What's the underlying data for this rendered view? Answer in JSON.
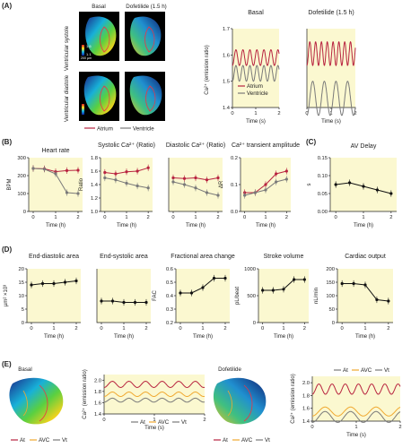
{
  "colors": {
    "atrium": "#b8233f",
    "ventricle": "#7a7a7a",
    "avc": "#f0a830",
    "panel_bg": "#fbf8d0"
  },
  "panelA": {
    "label": "(A)",
    "col_basal": "Basal",
    "col_dof": "Dofetilide (1.5 h)",
    "row_systole": "Ventricular systole",
    "row_diastole": "Ventricular diastole",
    "legend": [
      "Atrium",
      "Ventricle"
    ],
    "scale_vals": [
      "1.6",
      "1.1"
    ],
    "scale_um": "200 µm",
    "chart_titles": [
      "Basal",
      "Dofetilide (1.5 h)"
    ],
    "ylabel": "Ca²⁺ (emission ratio)",
    "xlabel": "Time (s)",
    "ylim": [
      1.4,
      1.7
    ]
  },
  "panelB": {
    "label": "(B)",
    "charts": [
      {
        "title": "Heart rate",
        "ylabel": "BPM"
      },
      {
        "title": "Systolic Ca²⁺ (Ratio)",
        "ylabel": "Ratio"
      },
      {
        "title": "Diastolic Ca²⁺ (Ratio)",
        "ylabel": ""
      },
      {
        "title": "Ca²⁺ transient amplitude",
        "ylabel": "ΔR"
      }
    ],
    "xlabel": "Time (h)"
  },
  "panelC": {
    "label": "(C)",
    "title": "AV Delay",
    "ylabel": "s",
    "xlabel": "Time (h)"
  },
  "panelD": {
    "label": "(D)",
    "charts": [
      {
        "title": "End-diastolic area",
        "ylabel": "µm² ×10³"
      },
      {
        "title": "End-systolic area",
        "ylabel": ""
      },
      {
        "title": "Fractional area change",
        "ylabel": "FAC"
      },
      {
        "title": "Stroke volume",
        "ylabel": "pL/beat"
      },
      {
        "title": "Cardiac output",
        "ylabel": "nL/min"
      }
    ],
    "xlabel": "Time (h)"
  },
  "panelE": {
    "label": "(E)",
    "col_basal": "Basal",
    "col_dof": "Dofetilide",
    "legend": [
      "At",
      "AVC",
      "Vt"
    ],
    "ylabel": "Ca²⁺ (emission ratio)",
    "xlabel": "Time (s)",
    "ylim": [
      1.4,
      2.1
    ]
  },
  "chart_data": [
    {
      "type": "line",
      "panel": "A",
      "title": "Basal",
      "xlabel": "Time (s)",
      "ylabel": "Ca²⁺ (emission ratio)",
      "ylim": [
        1.4,
        1.7
      ],
      "x_range": [
        0,
        2
      ],
      "series": [
        {
          "name": "Atrium",
          "period_s": 0.3,
          "min": 1.56,
          "max": 1.62
        },
        {
          "name": "Ventricle",
          "period_s": 0.3,
          "min": 1.5,
          "max": 1.56
        }
      ]
    },
    {
      "type": "line",
      "panel": "A",
      "title": "Dofetilide (1.5 h)",
      "xlabel": "Time (s)",
      "ylim": [
        1.4,
        1.7
      ],
      "x_range": [
        0,
        2
      ],
      "series": [
        {
          "name": "Atrium",
          "period_s": 0.24,
          "min": 1.56,
          "max": 1.65
        },
        {
          "name": "Ventricle",
          "period_s": 0.48,
          "min": 1.37,
          "max": 1.5
        }
      ]
    },
    {
      "type": "line",
      "panel": "B",
      "title": "Heart rate",
      "ylabel": "BPM",
      "ylim": [
        0,
        300
      ],
      "yticks": [
        0,
        100,
        200,
        300
      ],
      "x": [
        0,
        0.5,
        1,
        1.5,
        2
      ],
      "series": [
        {
          "name": "Atrium",
          "values": [
            240,
            238,
            222,
            228,
            230
          ]
        },
        {
          "name": "Ventricle",
          "values": [
            240,
            236,
            210,
            105,
            100
          ]
        }
      ]
    },
    {
      "type": "line",
      "panel": "B",
      "title": "Systolic Ca²⁺ (Ratio)",
      "ylabel": "Ratio",
      "ylim": [
        1.0,
        1.8
      ],
      "yticks": [
        1.0,
        1.2,
        1.4,
        1.6,
        1.8
      ],
      "x": [
        0,
        0.5,
        1,
        1.5,
        2
      ],
      "series": [
        {
          "name": "Atrium",
          "values": [
            1.58,
            1.56,
            1.59,
            1.6,
            1.65
          ]
        },
        {
          "name": "Ventricle",
          "values": [
            1.5,
            1.47,
            1.42,
            1.38,
            1.35
          ]
        }
      ]
    },
    {
      "type": "line",
      "panel": "B",
      "title": "Diastolic Ca²⁺ (Ratio)",
      "ylim": [
        1.0,
        1.8
      ],
      "x": [
        0,
        0.5,
        1,
        1.5,
        2
      ],
      "series": [
        {
          "name": "Atrium",
          "values": [
            1.5,
            1.49,
            1.5,
            1.47,
            1.5
          ]
        },
        {
          "name": "Ventricle",
          "values": [
            1.44,
            1.4,
            1.35,
            1.28,
            1.24
          ]
        }
      ]
    },
    {
      "type": "line",
      "panel": "B",
      "title": "Ca²⁺ transient amplitude",
      "ylabel": "ΔR",
      "ylim": [
        0,
        0.2
      ],
      "yticks": [
        0,
        0.1,
        0.2
      ],
      "x": [
        0,
        0.5,
        1,
        1.5,
        2
      ],
      "series": [
        {
          "name": "Atrium",
          "values": [
            0.07,
            0.07,
            0.1,
            0.14,
            0.15
          ]
        },
        {
          "name": "Ventricle",
          "values": [
            0.06,
            0.07,
            0.08,
            0.11,
            0.12
          ]
        }
      ]
    },
    {
      "type": "line",
      "panel": "C",
      "title": "AV Delay",
      "ylabel": "s",
      "ylim": [
        0,
        0.15
      ],
      "yticks": [
        0,
        0.05,
        0.1,
        0.15
      ],
      "x": [
        0,
        0.5,
        1,
        1.5,
        2
      ],
      "series": [
        {
          "values": [
            0.075,
            0.08,
            0.07,
            0.06,
            0.05
          ]
        }
      ]
    },
    {
      "type": "line",
      "panel": "D",
      "title": "End-diastolic area",
      "ylabel": "µm² ×10³",
      "ylim": [
        0,
        20
      ],
      "yticks": [
        0,
        5,
        10,
        15,
        20
      ],
      "x": [
        0,
        0.5,
        1,
        1.5,
        2
      ],
      "series": [
        {
          "values": [
            14,
            14.5,
            14.5,
            15,
            15.5
          ]
        }
      ]
    },
    {
      "type": "line",
      "panel": "D",
      "title": "End-systolic area",
      "ylim": [
        0,
        20
      ],
      "x": [
        0,
        0.5,
        1,
        1.5,
        2
      ],
      "series": [
        {
          "values": [
            8,
            8,
            7.5,
            7.5,
            7.5
          ]
        }
      ]
    },
    {
      "type": "line",
      "panel": "D",
      "title": "Fractional area change",
      "ylabel": "FAC",
      "ylim": [
        0.2,
        0.6
      ],
      "yticks": [
        0.2,
        0.3,
        0.4,
        0.5,
        0.6
      ],
      "x": [
        0,
        0.5,
        1,
        1.5,
        2
      ],
      "series": [
        {
          "values": [
            0.42,
            0.42,
            0.46,
            0.53,
            0.53
          ]
        }
      ]
    },
    {
      "type": "line",
      "panel": "D",
      "title": "Stroke volume",
      "ylabel": "pL/beat",
      "ylim": [
        0,
        1000
      ],
      "yticks": [
        0,
        500,
        1000
      ],
      "x": [
        0,
        0.5,
        1,
        1.5,
        2
      ],
      "series": [
        {
          "values": [
            600,
            600,
            620,
            800,
            800
          ]
        }
      ]
    },
    {
      "type": "line",
      "panel": "D",
      "title": "Cardiac output",
      "ylabel": "nL/min",
      "ylim": [
        0,
        200
      ],
      "yticks": [
        0,
        50,
        100,
        150,
        200
      ],
      "x": [
        0,
        0.5,
        1,
        1.5,
        2
      ],
      "series": [
        {
          "values": [
            145,
            145,
            140,
            85,
            80
          ]
        }
      ]
    },
    {
      "type": "line",
      "panel": "E",
      "title": "Basal",
      "ylabel": "Ca²⁺ (emission ratio)",
      "ylim": [
        1.4,
        2.1
      ],
      "x_range": [
        0,
        2
      ],
      "series": [
        {
          "name": "At",
          "period_s": 0.33,
          "min": 1.87,
          "max": 1.98
        },
        {
          "name": "AVC",
          "period_s": 0.33,
          "min": 1.71,
          "max": 1.79
        },
        {
          "name": "Vt",
          "period_s": 0.33,
          "min": 1.61,
          "max": 1.68
        }
      ]
    },
    {
      "type": "line",
      "panel": "E",
      "title": "Dofetilide",
      "ylim": [
        1.4,
        2.1
      ],
      "x_range": [
        0,
        2
      ],
      "series": [
        {
          "name": "At",
          "period_s": 0.3,
          "min": 1.82,
          "max": 1.98
        },
        {
          "name": "AVC",
          "period_s": 0.58,
          "min": 1.48,
          "max": 1.62
        },
        {
          "name": "Vt",
          "period_s": 0.58,
          "min": 1.38,
          "max": 1.55
        }
      ]
    }
  ]
}
